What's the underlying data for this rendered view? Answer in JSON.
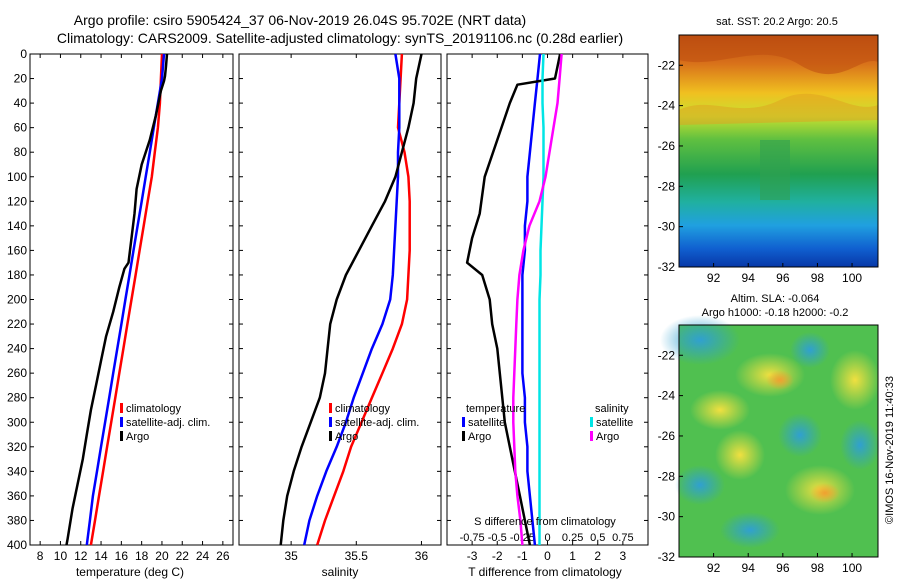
{
  "header": {
    "title_line1": "Argo profile: csiro 5905424_37 06-Nov-2019 26.04S 95.702E (NRT data)",
    "title_line2": "Climatology: CARS2009. Satellite-adjusted climatology: synTS_20191106.nc (0.28d earlier)"
  },
  "colors": {
    "climatology": "#ff0000",
    "satellite": "#0000ff",
    "argo": "#000000",
    "satellite_salinity": "#00e5e5",
    "argo_salinity": "#ff00ff"
  },
  "chart_data": [
    {
      "type": "line",
      "name": "temperature",
      "xlabel": "temperature (deg C)",
      "ylabel": "",
      "xlim": [
        7,
        27
      ],
      "ylim": [
        0,
        400
      ],
      "xticks": [
        "8",
        "10",
        "12",
        "14",
        "16",
        "18",
        "20",
        "22",
        "24",
        "26"
      ],
      "yticks": [
        "0",
        "20",
        "40",
        "60",
        "80",
        "100",
        "120",
        "140",
        "160",
        "180",
        "200",
        "220",
        "240",
        "260",
        "280",
        "300",
        "320",
        "340",
        "360",
        "380",
        "400"
      ],
      "legend": [
        "climatology",
        "satellite-adj. clim.",
        "Argo"
      ],
      "series": [
        {
          "name": "climatology",
          "color_key": "climatology",
          "x": [
            20.0,
            19.9,
            19.8,
            19.6,
            19.3,
            19.0,
            18.6,
            18.2,
            17.8,
            17.4,
            17.0,
            16.6,
            16.2,
            15.8,
            15.4,
            15.0,
            14.6,
            14.2,
            13.8,
            13.4,
            13.0
          ],
          "y": [
            0,
            20,
            40,
            60,
            80,
            100,
            120,
            140,
            160,
            180,
            200,
            220,
            240,
            260,
            280,
            300,
            320,
            340,
            360,
            380,
            400
          ]
        },
        {
          "name": "satellite-adj. clim.",
          "color_key": "satellite",
          "x": [
            20.2,
            20.0,
            19.6,
            19.2,
            18.8,
            18.4,
            18.0,
            17.6,
            17.2,
            16.8,
            16.4,
            16.0,
            15.6,
            15.2,
            14.8,
            14.4,
            14.0,
            13.6,
            13.2,
            12.9,
            12.6
          ],
          "y": [
            0,
            20,
            40,
            60,
            80,
            100,
            120,
            140,
            160,
            180,
            200,
            220,
            240,
            260,
            280,
            300,
            320,
            340,
            360,
            380,
            400
          ]
        },
        {
          "name": "Argo",
          "color_key": "argo",
          "x": [
            20.5,
            20.4,
            20.3,
            20.2,
            19.9,
            19.4,
            18.8,
            18.0,
            17.5,
            17.3,
            17.0,
            16.7,
            16.3,
            15.8,
            15.2,
            14.5,
            14.0,
            13.5,
            13.0,
            12.6,
            12.2,
            11.7,
            11.2,
            10.9,
            10.7,
            10.6
          ],
          "y": [
            0,
            10,
            18,
            22,
            30,
            50,
            70,
            90,
            110,
            130,
            150,
            170,
            175,
            190,
            210,
            230,
            250,
            270,
            290,
            310,
            330,
            350,
            370,
            385,
            395,
            400
          ]
        }
      ]
    },
    {
      "type": "line",
      "name": "salinity",
      "xlabel": "salinity",
      "ylabel": "",
      "xlim": [
        34.6,
        36.15
      ],
      "ylim": [
        0,
        400
      ],
      "xticks": [
        "35",
        "35.5",
        "36"
      ],
      "legend": [
        "climatology",
        "satellite-adj. clim.",
        "Argo"
      ],
      "series": [
        {
          "name": "climatology",
          "color_key": "climatology",
          "x": [
            35.85,
            35.84,
            35.83,
            35.82,
            35.87,
            35.9,
            35.91,
            35.91,
            35.91,
            35.9,
            35.89,
            35.85,
            35.78,
            35.7,
            35.62,
            35.54,
            35.46,
            35.4,
            35.33,
            35.26,
            35.2
          ],
          "y": [
            0,
            20,
            40,
            60,
            80,
            100,
            120,
            140,
            160,
            180,
            200,
            220,
            240,
            260,
            280,
            300,
            320,
            340,
            360,
            380,
            400
          ]
        },
        {
          "name": "satellite-adj. clim.",
          "color_key": "satellite",
          "x": [
            35.8,
            35.83,
            35.83,
            35.83,
            35.82,
            35.82,
            35.81,
            35.8,
            35.79,
            35.78,
            35.76,
            35.7,
            35.62,
            35.55,
            35.48,
            35.42,
            35.35,
            35.27,
            35.2,
            35.14,
            35.1
          ],
          "y": [
            0,
            20,
            40,
            60,
            80,
            100,
            120,
            140,
            160,
            180,
            200,
            220,
            240,
            260,
            280,
            300,
            320,
            340,
            360,
            380,
            400
          ]
        },
        {
          "name": "Argo",
          "color_key": "argo",
          "x": [
            36.0,
            35.96,
            35.94,
            35.9,
            35.85,
            35.8,
            35.72,
            35.62,
            35.52,
            35.42,
            35.35,
            35.3,
            35.28,
            35.26,
            35.22,
            35.15,
            35.08,
            35.02,
            34.97,
            34.94,
            34.92
          ],
          "y": [
            0,
            20,
            40,
            60,
            80,
            100,
            120,
            140,
            160,
            180,
            200,
            220,
            240,
            260,
            280,
            300,
            320,
            340,
            360,
            380,
            400
          ]
        }
      ]
    },
    {
      "type": "line",
      "name": "differences",
      "xlabel": "T difference from climatology",
      "xlabel_top": "S difference from climatology",
      "xlim": [
        -4,
        4
      ],
      "ylim": [
        0,
        400
      ],
      "xticks": [
        "-3",
        "-2",
        "-1",
        "0",
        "1",
        "2",
        "3"
      ],
      "xticks_top": [
        "-0.75",
        "-0.5",
        "-0.25",
        "0",
        "0.25",
        "0.5",
        "0.75"
      ],
      "legend_title_left": "temperature",
      "legend_title_right": "salinity",
      "legend_left": [
        "satellite",
        "Argo"
      ],
      "legend_right": [
        "satellite",
        "Argo"
      ],
      "series": [
        {
          "name": "T satellite",
          "color_key": "satellite",
          "x": [
            -0.3,
            -0.4,
            -0.5,
            -0.6,
            -0.7,
            -0.8,
            -0.8,
            -0.9,
            -0.9,
            -1.0,
            -1.0,
            -1.0,
            -1.0,
            -1.0,
            -0.9,
            -0.9,
            -0.8,
            -0.8,
            -0.7,
            -0.6,
            -0.5
          ],
          "y": [
            0,
            20,
            40,
            60,
            80,
            100,
            120,
            140,
            160,
            180,
            200,
            220,
            240,
            260,
            280,
            300,
            320,
            340,
            360,
            380,
            400
          ]
        },
        {
          "name": "T Argo",
          "color_key": "argo",
          "x": [
            0.5,
            0.3,
            -1.2,
            -1.5,
            -2.0,
            -2.5,
            -2.7,
            -3.0,
            -3.2,
            -2.6,
            -2.3,
            -2.2,
            -2.0,
            -1.9,
            -1.8,
            -1.7,
            -1.5,
            -1.3,
            -1.1,
            -0.9,
            -0.7
          ],
          "y": [
            0,
            20,
            25,
            40,
            70,
            100,
            130,
            150,
            170,
            180,
            200,
            220,
            240,
            260,
            280,
            300,
            320,
            340,
            360,
            380,
            400
          ]
        },
        {
          "name": "S satellite",
          "color_key": "satellite_salinity",
          "x": [
            -0.04,
            -0.05,
            -0.05,
            -0.04,
            -0.04,
            -0.04,
            -0.05,
            -0.06,
            -0.07,
            -0.07,
            -0.08,
            -0.08,
            -0.08,
            -0.08,
            -0.08,
            -0.08,
            -0.08,
            -0.08,
            -0.08,
            -0.08,
            -0.08
          ],
          "y": [
            0,
            20,
            40,
            60,
            80,
            100,
            120,
            140,
            160,
            180,
            200,
            220,
            240,
            260,
            280,
            300,
            320,
            340,
            360,
            380,
            400
          ]
        },
        {
          "name": "S Argo",
          "color_key": "argo_salinity",
          "x": [
            0.14,
            0.12,
            0.1,
            0.06,
            0.02,
            -0.02,
            -0.08,
            -0.18,
            -0.24,
            -0.28,
            -0.3,
            -0.31,
            -0.32,
            -0.33,
            -0.34,
            -0.34,
            -0.33,
            -0.32,
            -0.3,
            -0.27,
            -0.25
          ],
          "y": [
            0,
            20,
            40,
            60,
            80,
            100,
            120,
            140,
            160,
            180,
            200,
            220,
            240,
            260,
            280,
            300,
            320,
            340,
            360,
            380,
            400
          ]
        }
      ]
    },
    {
      "type": "heatmap",
      "name": "sst_map",
      "title": "sat. SST: 20.2  Argo: 20.5",
      "xlim": [
        90,
        101.5
      ],
      "ylim": [
        -32,
        -20.5
      ],
      "xticks": [
        "92",
        "94",
        "96",
        "98",
        "100"
      ],
      "yticks": [
        "-22",
        "-24",
        "-26",
        "-28",
        "-30",
        "-32"
      ]
    },
    {
      "type": "heatmap",
      "name": "sla_map",
      "title_line1": "Altim. SLA: -0.064",
      "title_line2": "Argo h1000: -0.18  h2000: -0.2",
      "xlim": [
        90,
        101.5
      ],
      "ylim": [
        -32,
        -20.5
      ],
      "xticks": [
        "92",
        "94",
        "96",
        "98",
        "100"
      ],
      "yticks": [
        "-22",
        "-24",
        "-26",
        "-28",
        "-30",
        "-32"
      ]
    }
  ],
  "footer": {
    "timestamp": "©IMOS 16-Nov-2019 11:40:33"
  }
}
